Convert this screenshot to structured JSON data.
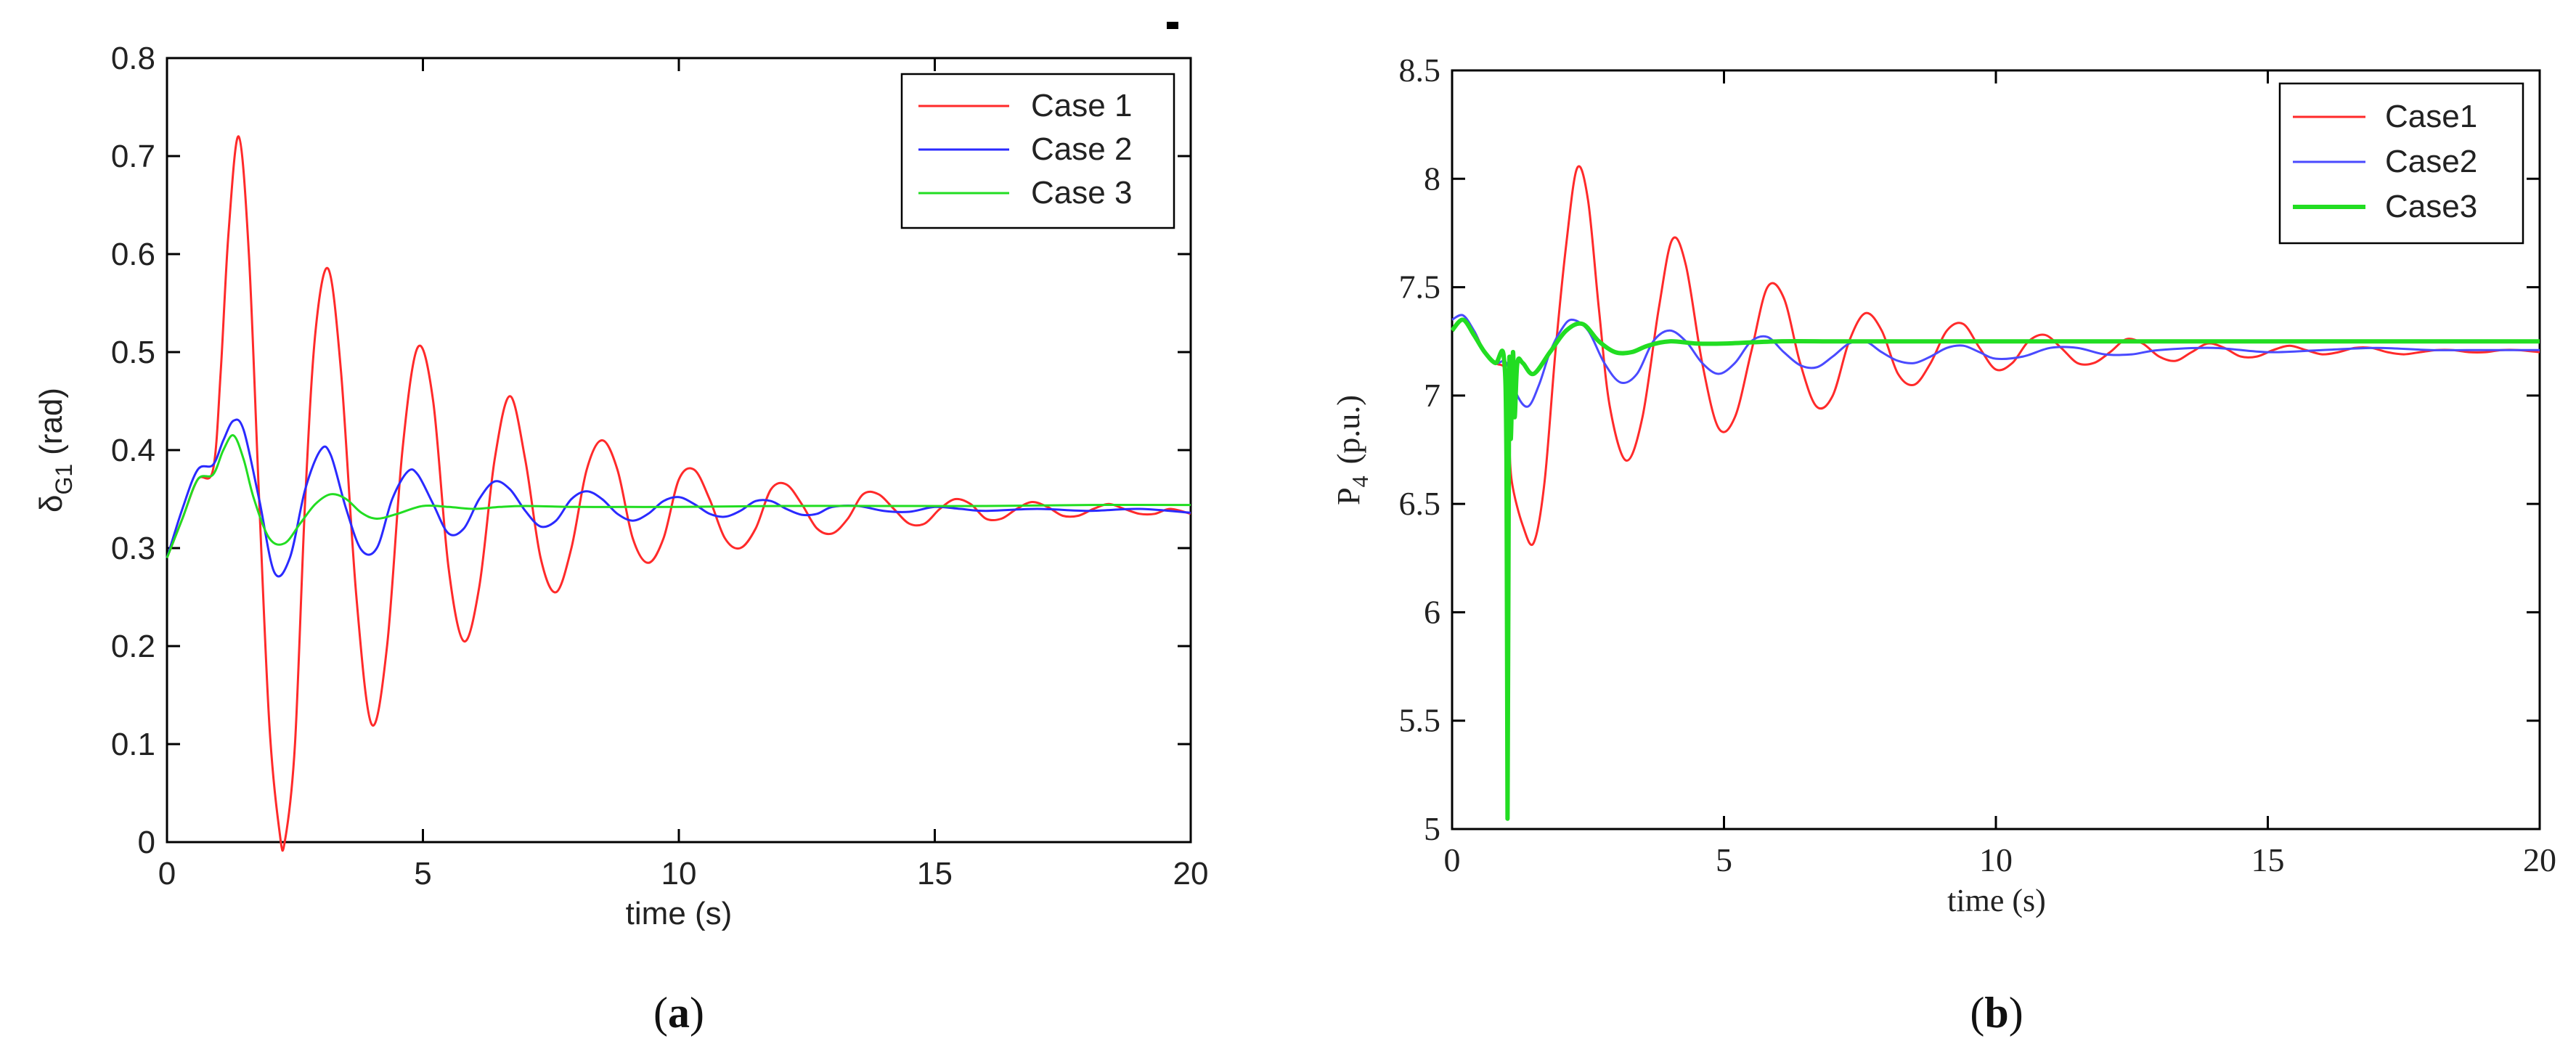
{
  "chart_data": [
    {
      "type": "line",
      "panel_label": "(a)",
      "panel_label_bold": "a",
      "xlabel": "time (s)",
      "ylabel_main": "δ",
      "ylabel_sub": "G1",
      "ylabel_unit": "(rad)",
      "xlim": [
        0,
        20
      ],
      "ylim": [
        0,
        0.8
      ],
      "xticks": [
        "0",
        "5",
        "10",
        "15",
        "20"
      ],
      "yticks": [
        "0",
        "0.1",
        "0.2",
        "0.3",
        "0.4",
        "0.5",
        "0.6",
        "0.7",
        "0.8"
      ],
      "legend_position": "top-right",
      "grid": false,
      "series": [
        {
          "name": "Case 1",
          "color": "#ff2a2a",
          "x": [
            0,
            0.3,
            0.6,
            0.9,
            1.05,
            1.2,
            1.4,
            1.6,
            1.8,
            2.0,
            2.2,
            2.3,
            2.5,
            2.7,
            2.9,
            3.15,
            3.4,
            3.7,
            4.0,
            4.3,
            4.6,
            4.9,
            5.2,
            5.5,
            5.8,
            6.1,
            6.4,
            6.7,
            7.0,
            7.3,
            7.6,
            7.9,
            8.2,
            8.5,
            8.8,
            9.1,
            9.4,
            9.7,
            10.0,
            10.3,
            10.6,
            10.9,
            11.2,
            11.5,
            11.8,
            12.1,
            12.4,
            12.7,
            13.0,
            13.3,
            13.6,
            13.9,
            14.2,
            14.5,
            14.8,
            15.1,
            15.4,
            15.7,
            16.0,
            16.3,
            16.6,
            16.9,
            17.2,
            17.5,
            17.8,
            18.1,
            18.4,
            18.7,
            19.0,
            19.3,
            19.6,
            20.0
          ],
          "y": [
            0.29,
            0.33,
            0.37,
            0.38,
            0.48,
            0.62,
            0.72,
            0.6,
            0.35,
            0.12,
            0.01,
            0.0,
            0.1,
            0.35,
            0.52,
            0.585,
            0.48,
            0.25,
            0.12,
            0.2,
            0.4,
            0.505,
            0.45,
            0.28,
            0.205,
            0.26,
            0.39,
            0.455,
            0.39,
            0.29,
            0.255,
            0.3,
            0.38,
            0.41,
            0.38,
            0.31,
            0.285,
            0.31,
            0.37,
            0.38,
            0.35,
            0.31,
            0.3,
            0.32,
            0.36,
            0.365,
            0.345,
            0.32,
            0.315,
            0.33,
            0.355,
            0.355,
            0.34,
            0.325,
            0.325,
            0.34,
            0.35,
            0.345,
            0.33,
            0.33,
            0.34,
            0.347,
            0.342,
            0.333,
            0.333,
            0.34,
            0.345,
            0.34,
            0.335,
            0.335,
            0.34,
            0.335
          ]
        },
        {
          "name": "Case 2",
          "color": "#2a2aff",
          "x": [
            0,
            0.3,
            0.6,
            0.9,
            1.1,
            1.3,
            1.5,
            1.8,
            2.1,
            2.4,
            2.7,
            3.0,
            3.2,
            3.5,
            3.8,
            4.1,
            4.4,
            4.7,
            4.9,
            5.2,
            5.5,
            5.8,
            6.1,
            6.4,
            6.7,
            7.0,
            7.3,
            7.6,
            7.9,
            8.2,
            8.5,
            8.8,
            9.1,
            9.4,
            9.7,
            10.0,
            10.3,
            10.6,
            10.9,
            11.2,
            11.5,
            11.8,
            12.1,
            12.4,
            12.7,
            13.0,
            13.5,
            14.0,
            14.5,
            15.0,
            15.5,
            16.0,
            17.0,
            18.0,
            19.0,
            20.0
          ],
          "y": [
            0.29,
            0.34,
            0.38,
            0.385,
            0.41,
            0.43,
            0.42,
            0.35,
            0.275,
            0.29,
            0.36,
            0.4,
            0.395,
            0.34,
            0.298,
            0.3,
            0.35,
            0.378,
            0.375,
            0.345,
            0.315,
            0.32,
            0.35,
            0.368,
            0.36,
            0.338,
            0.322,
            0.328,
            0.35,
            0.358,
            0.35,
            0.335,
            0.328,
            0.335,
            0.348,
            0.352,
            0.345,
            0.335,
            0.332,
            0.338,
            0.348,
            0.348,
            0.34,
            0.334,
            0.335,
            0.342,
            0.343,
            0.338,
            0.337,
            0.342,
            0.34,
            0.338,
            0.34,
            0.338,
            0.34,
            0.336
          ]
        },
        {
          "name": "Case 3",
          "color": "#22dd22",
          "x": [
            0,
            0.3,
            0.6,
            0.9,
            1.1,
            1.3,
            1.5,
            1.7,
            2.0,
            2.3,
            2.6,
            2.9,
            3.2,
            3.5,
            3.8,
            4.1,
            4.5,
            5.0,
            5.5,
            6.0,
            6.5,
            7.0,
            8.0,
            9.0,
            10.0,
            12.0,
            14.0,
            16.0,
            18.0,
            20.0
          ],
          "y": [
            0.29,
            0.33,
            0.37,
            0.375,
            0.4,
            0.415,
            0.39,
            0.35,
            0.31,
            0.305,
            0.325,
            0.345,
            0.355,
            0.35,
            0.336,
            0.33,
            0.335,
            0.343,
            0.342,
            0.34,
            0.342,
            0.343,
            0.342,
            0.342,
            0.342,
            0.343,
            0.343,
            0.343,
            0.344,
            0.344
          ]
        }
      ]
    },
    {
      "type": "line",
      "panel_label": "(b)",
      "panel_label_bold": "b",
      "xlabel": "time (s)",
      "ylabel_main": "P",
      "ylabel_sub": "4",
      "ylabel_unit": "(p.u.)",
      "xlim": [
        0,
        20
      ],
      "ylim": [
        5,
        8.5
      ],
      "xticks": [
        "0",
        "5",
        "10",
        "15",
        "20"
      ],
      "yticks": [
        "5",
        "5.5",
        "6",
        "6.5",
        "7",
        "7.5",
        "8",
        "8.5"
      ],
      "legend_position": "top-right",
      "grid": false,
      "series": [
        {
          "name": "Case1",
          "color": "#ff2a2a",
          "x": [
            0,
            0.2,
            0.4,
            0.6,
            0.8,
            1.0,
            1.05,
            1.1,
            1.3,
            1.5,
            1.7,
            1.9,
            2.1,
            2.3,
            2.5,
            2.7,
            2.9,
            3.2,
            3.5,
            3.8,
            4.05,
            4.3,
            4.6,
            4.9,
            5.2,
            5.5,
            5.8,
            6.1,
            6.4,
            6.7,
            7.0,
            7.3,
            7.6,
            7.9,
            8.2,
            8.5,
            8.8,
            9.1,
            9.4,
            9.7,
            10.0,
            10.3,
            10.6,
            10.9,
            11.2,
            11.5,
            11.8,
            12.1,
            12.4,
            12.7,
            13.0,
            13.3,
            13.6,
            13.9,
            14.2,
            14.5,
            14.8,
            15.1,
            15.4,
            15.7,
            16.0,
            16.3,
            16.6,
            16.9,
            17.2,
            17.5,
            17.8,
            18.1,
            18.4,
            18.7,
            19.0,
            19.3,
            19.6,
            20.0
          ],
          "y": [
            7.3,
            7.35,
            7.3,
            7.2,
            7.15,
            7.1,
            6.8,
            6.6,
            6.4,
            6.32,
            6.6,
            7.2,
            7.7,
            8.05,
            7.9,
            7.4,
            6.95,
            6.7,
            6.9,
            7.4,
            7.72,
            7.6,
            7.15,
            6.85,
            6.9,
            7.2,
            7.5,
            7.45,
            7.15,
            6.95,
            7.0,
            7.25,
            7.38,
            7.3,
            7.1,
            7.05,
            7.15,
            7.3,
            7.33,
            7.22,
            7.12,
            7.15,
            7.25,
            7.28,
            7.22,
            7.15,
            7.15,
            7.2,
            7.26,
            7.24,
            7.18,
            7.16,
            7.2,
            7.24,
            7.22,
            7.18,
            7.18,
            7.21,
            7.23,
            7.21,
            7.19,
            7.2,
            7.22,
            7.22,
            7.2,
            7.19,
            7.2,
            7.21,
            7.21,
            7.2,
            7.2,
            7.21,
            7.21,
            7.2
          ]
        },
        {
          "name": "Case2",
          "color": "#4a4aff",
          "x": [
            0,
            0.2,
            0.4,
            0.6,
            0.8,
            1.0,
            1.2,
            1.4,
            1.6,
            1.8,
            2.0,
            2.2,
            2.5,
            2.8,
            3.1,
            3.4,
            3.7,
            4.0,
            4.3,
            4.6,
            4.9,
            5.2,
            5.5,
            5.8,
            6.1,
            6.4,
            6.7,
            7.0,
            7.3,
            7.6,
            7.9,
            8.2,
            8.5,
            8.8,
            9.1,
            9.4,
            9.7,
            10.0,
            10.5,
            11.0,
            11.5,
            12.0,
            12.5,
            13.0,
            14.0,
            15.0,
            16.0,
            17.0,
            18.0,
            19.0,
            20.0
          ],
          "y": [
            7.35,
            7.37,
            7.3,
            7.2,
            7.15,
            7.15,
            7.0,
            6.95,
            7.05,
            7.2,
            7.3,
            7.35,
            7.3,
            7.15,
            7.06,
            7.1,
            7.25,
            7.3,
            7.25,
            7.15,
            7.1,
            7.15,
            7.25,
            7.27,
            7.2,
            7.14,
            7.13,
            7.18,
            7.24,
            7.25,
            7.2,
            7.16,
            7.15,
            7.18,
            7.22,
            7.23,
            7.2,
            7.17,
            7.18,
            7.22,
            7.22,
            7.19,
            7.19,
            7.21,
            7.22,
            7.2,
            7.21,
            7.22,
            7.21,
            7.21,
            7.21
          ]
        },
        {
          "name": "Case3",
          "color": "#22dd22",
          "x": [
            0,
            0.2,
            0.4,
            0.6,
            0.8,
            0.95,
            1.0,
            1.02,
            1.05,
            1.08,
            1.12,
            1.15,
            1.2,
            1.3,
            1.5,
            1.8,
            2.1,
            2.4,
            2.7,
            3.0,
            3.3,
            3.6,
            4.0,
            4.5,
            5.0,
            6.0,
            7.0,
            8.0,
            10.0,
            12.0,
            14.0,
            16.0,
            18.0,
            20.0
          ],
          "y": [
            7.3,
            7.35,
            7.28,
            7.2,
            7.15,
            7.18,
            6.7,
            5.05,
            7.1,
            6.8,
            7.2,
            6.9,
            7.15,
            7.15,
            7.1,
            7.2,
            7.3,
            7.33,
            7.25,
            7.2,
            7.2,
            7.23,
            7.25,
            7.24,
            7.24,
            7.25,
            7.25,
            7.25,
            7.25,
            7.25,
            7.25,
            7.25,
            7.25,
            7.25
          ]
        }
      ]
    }
  ]
}
